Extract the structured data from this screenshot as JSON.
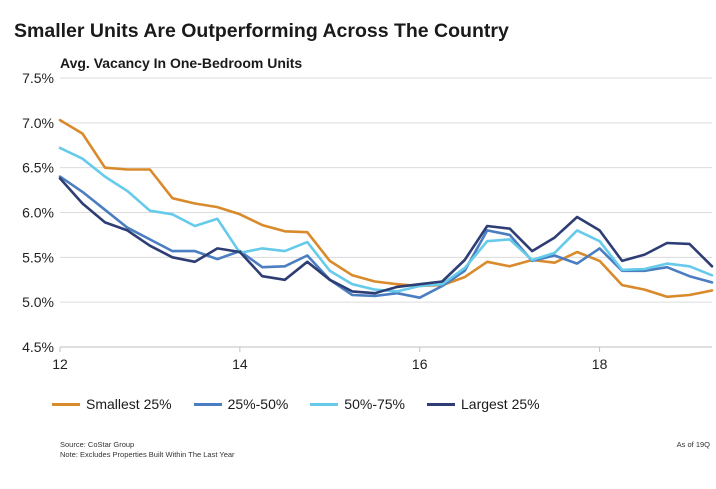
{
  "header": {
    "title": "Smaller Units Are Outperforming Across The Country"
  },
  "footer": {
    "source": "Source: CoStar Group",
    "note": "Note: Excludes Properties Built Within The Last Year",
    "as_of": "As of 19Q"
  },
  "chart_data": {
    "type": "line",
    "title": "Avg. Vacancy In One-Bedroom Units",
    "xlabel": "",
    "ylabel": "",
    "xlim": [
      12,
      19.25
    ],
    "ylim": [
      4.5,
      7.5
    ],
    "x_ticks": [
      12,
      14,
      16,
      18
    ],
    "y_ticks": [
      "4.5%",
      "5.0%",
      "5.5%",
      "6.0%",
      "6.5%",
      "7.0%",
      "7.5%"
    ],
    "y_tick_values": [
      4.5,
      5.0,
      5.5,
      6.0,
      6.5,
      7.0,
      7.5
    ],
    "grid": "horizontal",
    "legend": "bottom",
    "x": [
      12.0,
      12.25,
      12.5,
      12.75,
      13.0,
      13.25,
      13.5,
      13.75,
      14.0,
      14.25,
      14.5,
      14.75,
      15.0,
      15.25,
      15.5,
      15.75,
      16.0,
      16.25,
      16.5,
      16.75,
      17.0,
      17.25,
      17.5,
      17.75,
      18.0,
      18.25,
      18.5,
      18.75,
      19.0,
      19.25
    ],
    "series": [
      {
        "name": "Smallest 25%",
        "color": "#D98A2B",
        "values": [
          7.03,
          6.88,
          6.5,
          6.48,
          6.48,
          6.16,
          6.1,
          6.06,
          5.98,
          5.86,
          5.79,
          5.78,
          5.46,
          5.3,
          5.23,
          5.2,
          5.18,
          5.19,
          5.28,
          5.45,
          5.4,
          5.47,
          5.44,
          5.56,
          5.46,
          5.19,
          5.14,
          5.06,
          5.08,
          5.13
        ]
      },
      {
        "name": "25%-50%",
        "color": "#4A7EC1",
        "values": [
          6.4,
          6.23,
          6.03,
          5.83,
          5.7,
          5.57,
          5.57,
          5.48,
          5.57,
          5.39,
          5.4,
          5.52,
          5.25,
          5.08,
          5.07,
          5.1,
          5.05,
          5.18,
          5.35,
          5.8,
          5.75,
          5.46,
          5.52,
          5.43,
          5.6,
          5.35,
          5.35,
          5.39,
          5.29,
          5.22
        ]
      },
      {
        "name": "50%-75%",
        "color": "#66CBEA",
        "values": [
          6.72,
          6.6,
          6.4,
          6.24,
          6.02,
          5.98,
          5.85,
          5.93,
          5.55,
          5.6,
          5.57,
          5.67,
          5.35,
          5.2,
          5.14,
          5.12,
          5.18,
          5.2,
          5.38,
          5.68,
          5.7,
          5.47,
          5.55,
          5.8,
          5.68,
          5.36,
          5.37,
          5.43,
          5.4,
          5.3
        ]
      },
      {
        "name": "Largest 25%",
        "color": "#2E3E74",
        "values": [
          6.38,
          6.1,
          5.89,
          5.8,
          5.63,
          5.5,
          5.45,
          5.6,
          5.56,
          5.29,
          5.25,
          5.45,
          5.25,
          5.12,
          5.1,
          5.17,
          5.2,
          5.23,
          5.47,
          5.85,
          5.82,
          5.57,
          5.72,
          5.95,
          5.8,
          5.46,
          5.53,
          5.66,
          5.65,
          5.4
        ]
      }
    ]
  }
}
